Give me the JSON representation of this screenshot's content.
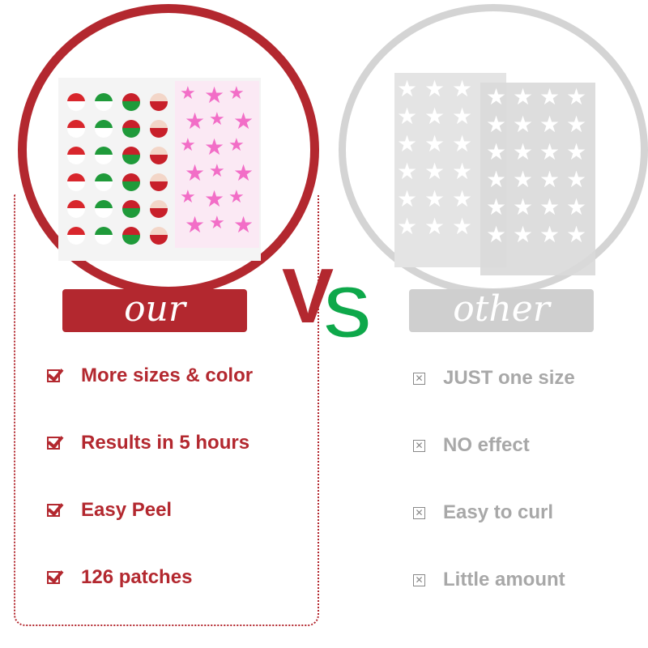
{
  "labels": {
    "ours": "our",
    "others": "other",
    "versus_v": "V",
    "versus_s": "S"
  },
  "ours_features": [
    "More sizes & color",
    "Results in 5 hours",
    "Easy Peel",
    "126 patches"
  ],
  "others_features": [
    "JUST one size",
    "NO effect",
    "Easy to curl",
    "Little amount"
  ],
  "icons": {
    "ours": "checkbox-checked-icon",
    "others": "checkbox-x-icon"
  },
  "colors": {
    "brand_red": "#b3282f",
    "vs_green": "#0ea84a",
    "muted_gray": "#a8a8a8",
    "sticker_pink": "#f26ec7"
  }
}
